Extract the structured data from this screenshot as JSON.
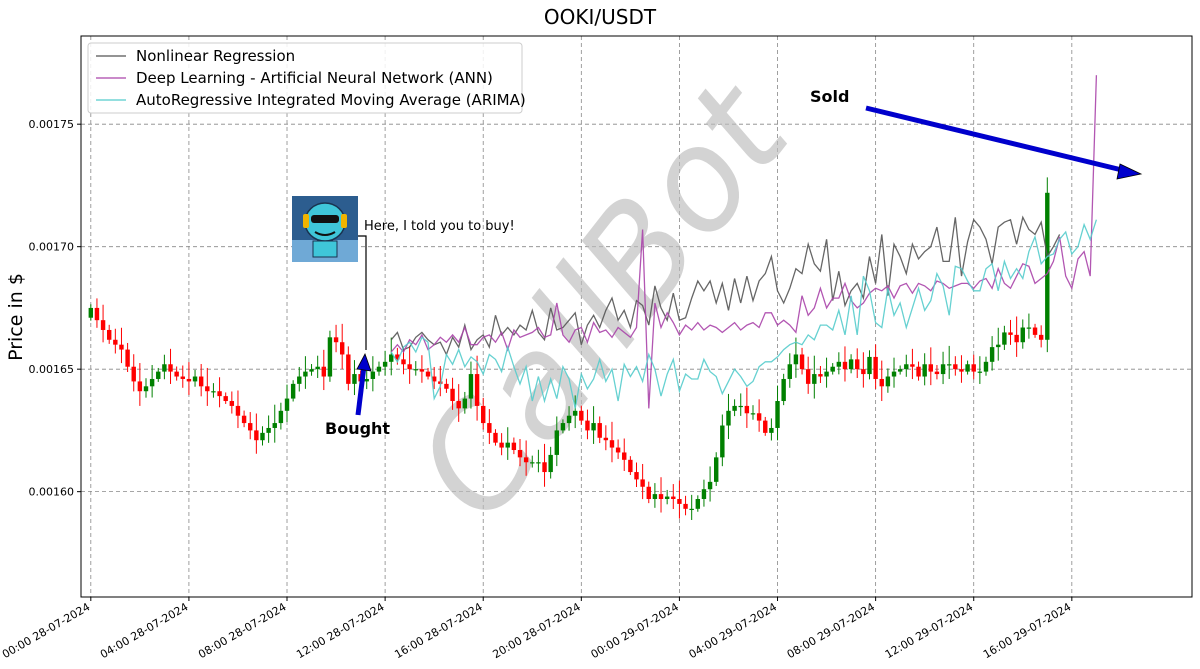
{
  "chart_data": {
    "type": "candlestick+line",
    "title": "OOKI/USDT",
    "ylabel": "Price in $",
    "xlabel": "",
    "ylim": [
      0.001557,
      0.001786
    ],
    "xlim_hours": [
      -0.4,
      44.9
    ],
    "y_ticks": [
      "0.00160",
      "0.00165",
      "0.00170",
      "0.00175"
    ],
    "y_tick_values": [
      0.0016,
      0.00165,
      0.0017,
      0.00175
    ],
    "x_ticks": [
      "00:00 28-07-2024",
      "04:00 28-07-2024",
      "08:00 28-07-2024",
      "12:00 28-07-2024",
      "16:00 28-07-2024",
      "20:00 28-07-2024",
      "00:00 29-07-2024",
      "04:00 29-07-2024",
      "08:00 29-07-2024",
      "12:00 29-07-2024",
      "16:00 29-07-2024"
    ],
    "x_tick_hours": [
      0,
      4,
      8,
      12,
      16,
      20,
      24,
      28,
      32,
      36,
      40
    ],
    "grid": true,
    "legend_position": "top-left",
    "candle_interval_minutes": 15,
    "candles_close": [
      0.001675,
      0.00167,
      0.001666,
      0.001662,
      0.00166,
      0.001658,
      0.001651,
      0.001645,
      0.001641,
      0.001643,
      0.001646,
      0.001649,
      0.001652,
      0.001649,
      0.001647,
      0.001646,
      0.001645,
      0.001647,
      0.001643,
      0.001641,
      0.001641,
      0.001639,
      0.001637,
      0.001635,
      0.001631,
      0.001628,
      0.001625,
      0.001621,
      0.001624,
      0.001626,
      0.001628,
      0.001633,
      0.001638,
      0.001644,
      0.001647,
      0.001649,
      0.00165,
      0.001651,
      0.001647,
      0.001663,
      0.001661,
      0.001656,
      0.001644,
      0.001648,
      0.001645,
      0.001646,
      0.001649,
      0.001651,
      0.001653,
      0.001656,
      0.001654,
      0.001652,
      0.00165,
      0.00165,
      0.001649,
      0.001647,
      0.001645,
      0.001644,
      0.001642,
      0.001637,
      0.001634,
      0.001638,
      0.001648,
      0.001635,
      0.001628,
      0.001624,
      0.00162,
      0.001618,
      0.00162,
      0.001617,
      0.001614,
      0.001612,
      0.001612,
      0.001612,
      0.001608,
      0.001615,
      0.001625,
      0.001628,
      0.001631,
      0.001633,
      0.001629,
      0.001625,
      0.001628,
      0.001622,
      0.001621,
      0.001618,
      0.001616,
      0.001613,
      0.001608,
      0.001605,
      0.001602,
      0.001597,
      0.001599,
      0.001597,
      0.001598,
      0.001597,
      0.001595,
      0.001593,
      0.001593,
      0.001597,
      0.001601,
      0.001604,
      0.001614,
      0.001627,
      0.001633,
      0.001635,
      0.001635,
      0.001632,
      0.001632,
      0.001629,
      0.001624,
      0.001626,
      0.001637,
      0.001646,
      0.001652,
      0.001656,
      0.00165,
      0.001644,
      0.001648,
      0.001647,
      0.001649,
      0.001651,
      0.001653,
      0.00165,
      0.001654,
      0.00165,
      0.001648,
      0.001655,
      0.001646,
      0.001643,
      0.001647,
      0.001649,
      0.00165,
      0.001652,
      0.001651,
      0.001647,
      0.001652,
      0.001649,
      0.001648,
      0.001652,
      0.001652,
      0.00165,
      0.001649,
      0.001652,
      0.001649,
      0.001649,
      0.001653,
      0.001659,
      0.00166,
      0.001665,
      0.001664,
      0.001661,
      0.001667,
      0.001667,
      0.001664,
      0.001662,
      0.001722
    ],
    "open_price": 0.001671,
    "series": [
      {
        "name": "Nonlinear Regression",
        "color": "#555555",
        "start_candle": 49,
        "values": [
          0.001662,
          0.001665,
          0.001658,
          0.001659,
          0.001663,
          0.001665,
          0.001662,
          0.00166,
          0.001661,
          0.001656,
          0.001663,
          0.001659,
          0.001668,
          0.001658,
          0.001662,
          0.001664,
          0.001659,
          0.001672,
          0.001664,
          0.001667,
          0.001664,
          0.001668,
          0.001666,
          0.001674,
          0.001665,
          0.001662,
          0.001675,
          0.001666,
          0.001667,
          0.00167,
          0.001673,
          0.00166,
          0.001668,
          0.001672,
          0.001667,
          0.001674,
          0.001679,
          0.00167,
          0.001674,
          0.001667,
          0.001678,
          0.001676,
          0.001668,
          0.001684,
          0.001675,
          0.00167,
          0.001681,
          0.00167,
          0.001671,
          0.001679,
          0.001686,
          0.001682,
          0.001686,
          0.001677,
          0.001685,
          0.001674,
          0.001687,
          0.001677,
          0.001688,
          0.001678,
          0.001686,
          0.001689,
          0.001696,
          0.001682,
          0.001677,
          0.001683,
          0.001691,
          0.001689,
          0.001701,
          0.001693,
          0.00169,
          0.001703,
          0.001678,
          0.00169,
          0.001676,
          0.001682,
          0.001685,
          0.001679,
          0.001696,
          0.001685,
          0.001705,
          0.00168,
          0.001701,
          0.001696,
          0.001689,
          0.001701,
          0.001695,
          0.001698,
          0.0017,
          0.001708,
          0.001694,
          0.001694,
          0.001712,
          0.001688,
          0.001702,
          0.001711,
          0.001708,
          0.001703,
          0.001693,
          0.001708,
          0.00171,
          0.001711,
          0.001701,
          0.001712,
          0.001707,
          0.001705,
          0.00171,
          0.001696,
          0.0017,
          0.001705
        ]
      },
      {
        "name": "Deep Learning - Artificial Neural Network (ANN)",
        "color": "#aa44aa",
        "start_candle": 49,
        "values": [
          0.001657,
          0.00166,
          0.001657,
          0.001662,
          0.00166,
          0.001664,
          0.001658,
          0.00166,
          0.001663,
          0.001661,
          0.001664,
          0.001661,
          0.001667,
          0.00166,
          0.00166,
          0.001663,
          0.001664,
          0.001661,
          0.001665,
          0.001658,
          0.001666,
          0.001663,
          0.001664,
          0.001665,
          0.001667,
          0.001663,
          0.001664,
          0.001677,
          0.001664,
          0.001661,
          0.001666,
          0.001667,
          0.001661,
          0.001669,
          0.001665,
          0.001666,
          0.001663,
          0.001667,
          0.001665,
          0.001663,
          0.001667,
          0.001707,
          0.001634,
          0.001677,
          0.001667,
          0.001673,
          0.001669,
          0.001664,
          0.001668,
          0.001666,
          0.001669,
          0.001666,
          0.001668,
          0.001667,
          0.001665,
          0.001667,
          0.001669,
          0.001666,
          0.001668,
          0.001669,
          0.001667,
          0.001673,
          0.001673,
          0.001668,
          0.00167,
          0.001668,
          0.001665,
          0.00168,
          0.001672,
          0.001675,
          0.001683,
          0.001675,
          0.001679,
          0.001679,
          0.001685,
          0.001678,
          0.001675,
          0.001677,
          0.001681,
          0.001683,
          0.001682,
          0.001684,
          0.001679,
          0.001684,
          0.001685,
          0.001681,
          0.001685,
          0.001684,
          0.001682,
          0.001686,
          0.001685,
          0.001683,
          0.001684,
          0.001685,
          0.001685,
          0.001683,
          0.001686,
          0.001687,
          0.001683,
          0.001691,
          0.001685,
          0.001683,
          0.001688,
          0.001693,
          0.001692,
          0.001685,
          0.001687,
          0.001689,
          0.001694,
          0.001704,
          0.001688,
          0.001683,
          0.001695,
          0.001698,
          0.001688,
          0.00177
        ]
      },
      {
        "name": "AutoRegressive Integrated Moving Average (ARIMA)",
        "color": "#55cccc",
        "start_candle": 49,
        "values": [
          0.001657,
          0.001653,
          0.001659,
          0.001661,
          0.001657,
          0.001663,
          0.001661,
          0.001638,
          0.001643,
          0.001656,
          0.001652,
          0.001658,
          0.001651,
          0.001655,
          0.001653,
          0.001648,
          0.001656,
          0.001654,
          0.001649,
          0.001659,
          0.001651,
          0.001644,
          0.001651,
          0.001637,
          0.001647,
          0.001637,
          0.001646,
          0.001638,
          0.001651,
          0.001646,
          0.001634,
          0.001648,
          0.001642,
          0.001646,
          0.001654,
          0.001645,
          0.00165,
          0.001637,
          0.001652,
          0.001647,
          0.001651,
          0.001645,
          0.001656,
          0.00165,
          0.001639,
          0.001648,
          0.001654,
          0.001641,
          0.001648,
          0.001646,
          0.001646,
          0.001654,
          0.001649,
          0.001647,
          0.00164,
          0.001645,
          0.00165,
          0.001647,
          0.001643,
          0.001645,
          0.001651,
          0.001653,
          0.001653,
          0.001655,
          0.001658,
          0.00166,
          0.001661,
          0.00166,
          0.001664,
          0.001662,
          0.001668,
          0.001668,
          0.001666,
          0.001674,
          0.001664,
          0.00168,
          0.001664,
          0.001688,
          0.001682,
          0.001669,
          0.001667,
          0.001683,
          0.001672,
          0.001677,
          0.001667,
          0.001675,
          0.001683,
          0.001674,
          0.001678,
          0.001689,
          0.001684,
          0.001672,
          0.001692,
          0.001691,
          0.001686,
          0.001682,
          0.001682,
          0.001691,
          0.001693,
          0.001682,
          0.001694,
          0.001687,
          0.001691,
          0.001687,
          0.001698,
          0.001704,
          0.001693,
          0.001696,
          0.001697,
          0.001703,
          0.001706,
          0.001697,
          0.0017,
          0.001709,
          0.001703,
          0.001711
        ]
      }
    ],
    "annotations": [
      {
        "text": "Bought",
        "candle": 50
      },
      {
        "text": "Sold",
        "candle": 163
      },
      {
        "text": "Here, I told you to buy!",
        "candle": 50
      }
    ],
    "watermark": "CallBot",
    "colors": {
      "up": "#008000",
      "down": "#ff0000",
      "arrow": "#0000cc",
      "grid": "#888888"
    }
  }
}
